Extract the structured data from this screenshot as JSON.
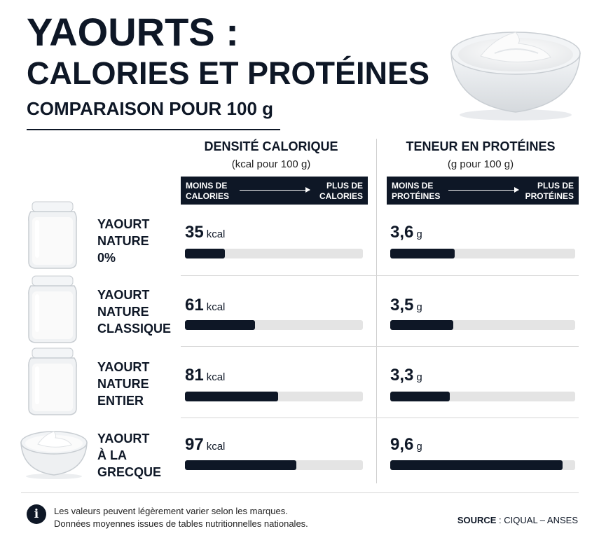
{
  "title_line1": "YAOURTS :",
  "title_line2": "CALORIES ET PROTÉINES",
  "subtitle": "COMPARAISON POUR 100 g",
  "columns": {
    "calories": {
      "heading": "DENSITÉ CALORIQUE",
      "unit_note": "(kcal pour 100 g)",
      "scale_left_1": "MOINS DE",
      "scale_left_2": "CALORIES",
      "scale_right_1": "PLUS DE",
      "scale_right_2": "CALORIES"
    },
    "proteins": {
      "heading": "TENEUR EN PROTÉINES",
      "unit_note": "(g pour 100 g)",
      "scale_left_1": "MOINS DE",
      "scale_left_2": "PROTÉINES",
      "scale_right_1": "PLUS DE",
      "scale_right_2": "PROTÉINES"
    }
  },
  "products": [
    {
      "name_lines": [
        "YAOURT",
        "NATURE",
        "0%"
      ],
      "kcal_text": "35",
      "kcal_unit": "kcal",
      "prot_text": "3,6",
      "prot_unit": "g",
      "icon": "yogurt-jar-icon"
    },
    {
      "name_lines": [
        "YAOURT",
        "NATURE",
        "CLASSIQUE"
      ],
      "kcal_text": "61",
      "kcal_unit": "kcal",
      "prot_text": "3,5",
      "prot_unit": "g",
      "icon": "yogurt-jar-icon"
    },
    {
      "name_lines": [
        "YAOURT",
        "NATURE",
        "ENTIER"
      ],
      "kcal_text": "81",
      "kcal_unit": "kcal",
      "prot_text": "3,3",
      "prot_unit": "g",
      "icon": "yogurt-jar-icon"
    },
    {
      "name_lines": [
        "YAOURT",
        "À LA",
        "GRECQUE"
      ],
      "kcal_text": "97",
      "kcal_unit": "kcal",
      "prot_text": "9,6",
      "prot_unit": "g",
      "icon": "yogurt-bowl-icon"
    }
  ],
  "footer": {
    "note_line1": "Les valeurs peuvent légèrement varier selon les marques.",
    "note_line2": "Données moyennes issues de tables nutritionnelles nationales.",
    "source_label": "SOURCE",
    "source_value": " : CIQUAL – ANSES"
  },
  "colors": {
    "navy": "#0e1726",
    "track": "#e4e4e4"
  },
  "chart_data": [
    {
      "type": "bar",
      "title": "DENSITÉ CALORIQUE",
      "ylabel": "(kcal pour 100 g)",
      "categories": [
        "YAOURT NATURE 0%",
        "YAOURT NATURE CLASSIQUE",
        "YAOURT NATURE ENTIER",
        "YAOURT À LA GRECQUE"
      ],
      "values": [
        35,
        61,
        81,
        97
      ],
      "xlim": [
        0,
        155
      ],
      "orientation": "horizontal"
    },
    {
      "type": "bar",
      "title": "TENEUR EN PROTÉINES",
      "ylabel": "(g pour 100 g)",
      "categories": [
        "YAOURT NATURE 0%",
        "YAOURT NATURE CLASSIQUE",
        "YAOURT NATURE ENTIER",
        "YAOURT À LA GRECQUE"
      ],
      "values": [
        3.6,
        3.5,
        3.3,
        9.6
      ],
      "xlim": [
        0,
        10.3
      ],
      "orientation": "horizontal"
    }
  ]
}
